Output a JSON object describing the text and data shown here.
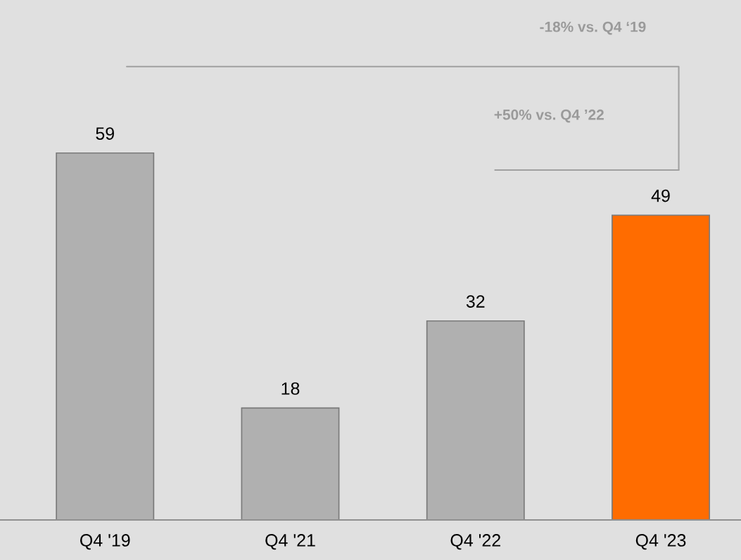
{
  "chart_data": {
    "type": "bar",
    "categories": [
      "Q4 '19",
      "Q4 '21",
      "Q4 '22",
      "Q4 '23"
    ],
    "values": [
      59,
      18,
      32,
      49
    ],
    "colors": [
      "#b0b0b0",
      "#b0b0b0",
      "#b0b0b0",
      "#ff6c00"
    ],
    "data_labels": true,
    "grid": false,
    "legend": false,
    "annotations": [
      "-18% vs. Q4 ‘19",
      "+50% vs. Q4 ’22"
    ]
  }
}
